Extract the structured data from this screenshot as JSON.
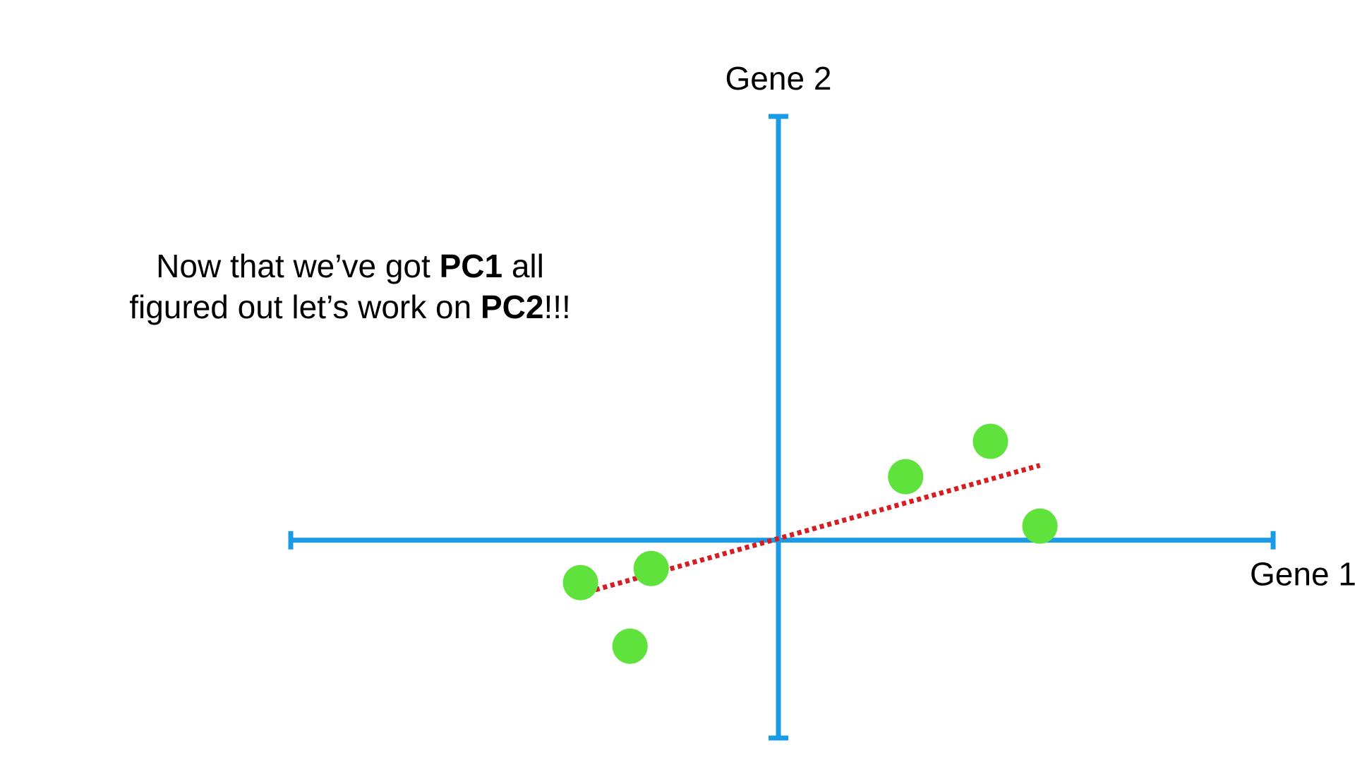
{
  "note": {
    "line1_a": "Now that we’ve got ",
    "line1_b": "PC1",
    "line1_c": " all",
    "line2_a": "figured out let’s work on ",
    "line2_b": "PC2",
    "line2_c": "!!!"
  },
  "chart_data": {
    "type": "scatter",
    "title": "",
    "xlabel": "Gene 1",
    "ylabel": "Gene 2",
    "xlim": [
      -6.9,
      7.0
    ],
    "ylim": [
      -2.8,
      6.0
    ],
    "grid": false,
    "colors": {
      "axes": "#1a9be8",
      "points": "#5fe33c",
      "fit_line": "#d71d24"
    },
    "series": [
      {
        "points": [
          {
            "x": -2.8,
            "y": -0.6
          },
          {
            "x": -1.8,
            "y": -0.4
          },
          {
            "x": -2.1,
            "y": -1.5
          },
          {
            "x": 1.8,
            "y": 0.9
          },
          {
            "x": 3.0,
            "y": 1.4
          },
          {
            "x": 3.7,
            "y": 0.2
          }
        ]
      }
    ],
    "fit_line": {
      "style": "dotted",
      "x": [
        -2.8,
        3.7
      ],
      "y": [
        -0.76,
        1.06
      ]
    }
  }
}
